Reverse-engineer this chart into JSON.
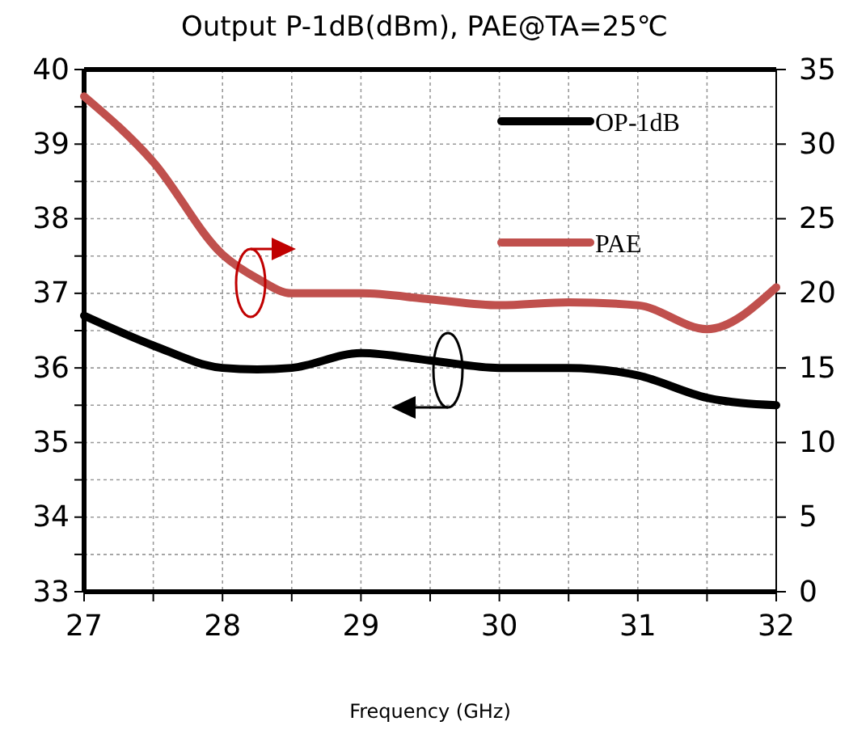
{
  "chart_data": {
    "type": "line",
    "title": "Output P-1dB(dBm), PAE@TA=25℃",
    "xlabel": "Frequency (GHz)",
    "x": [
      27,
      27.5,
      28,
      28.25,
      28.5,
      29,
      29.5,
      30,
      30.5,
      31,
      31.5,
      32
    ],
    "series": [
      {
        "name": "OP-1dB",
        "color": "#000000",
        "values": [
          36.7,
          36.3,
          36.0,
          35.98,
          36.0,
          36.2,
          36.1,
          36.0,
          36.0,
          35.9,
          35.6,
          35.5
        ]
      },
      {
        "name": "PAE",
        "color": "#c0504d",
        "axis": "y2",
        "values": [
          33.2,
          28.8,
          22.6,
          21.0,
          20.0,
          20.0,
          19.6,
          19.2,
          19.4,
          19.2,
          17.6,
          20.4
        ]
      }
    ],
    "xlim": [
      27,
      32
    ],
    "xticks": [
      27,
      {
        "value": 27.5,
        "label": null
      },
      28,
      {
        "value": 28.5,
        "label": null
      },
      29,
      {
        "value": 29.5,
        "label": null
      },
      30,
      {
        "value": 30.5,
        "label": null
      },
      31,
      {
        "value": 31.5,
        "label": null
      },
      32
    ],
    "ylim": [
      33,
      40
    ],
    "yticks": [
      33,
      {
        "value": 33.5,
        "label": null
      },
      34,
      {
        "value": 34.5,
        "label": null
      },
      35,
      {
        "value": 35.5,
        "label": null
      },
      36,
      {
        "value": 36.5,
        "label": null
      },
      37,
      {
        "value": 37.5,
        "label": null
      },
      38,
      {
        "value": 38.5,
        "label": null
      },
      39,
      {
        "value": 39.5,
        "label": null
      },
      40
    ],
    "y2lim": [
      0,
      35
    ],
    "y2ticks": [
      0,
      5,
      10,
      15,
      20,
      25,
      30,
      35
    ],
    "grid": true,
    "legend": "top right",
    "marker": "none",
    "line_style": "solid"
  }
}
